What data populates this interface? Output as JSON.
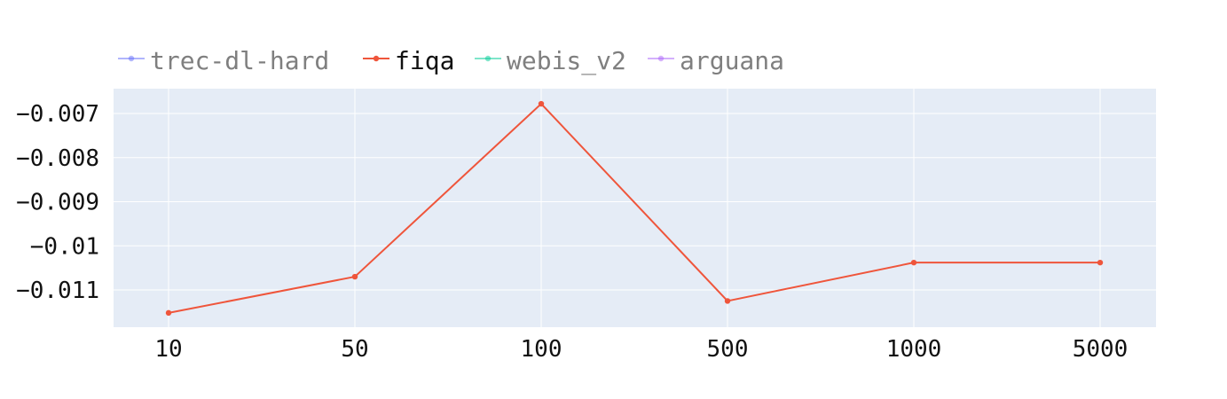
{
  "chart_data": {
    "type": "line",
    "title": "",
    "xlabel": "",
    "ylabel": "",
    "x_scale": "category",
    "categories": [
      "10",
      "50",
      "100",
      "500",
      "1000",
      "5000"
    ],
    "y_ticks": [
      -0.011,
      -0.01,
      -0.009,
      -0.008,
      -0.007
    ],
    "y_tick_labels": [
      "−0.011",
      "−0.01",
      "−0.009",
      "−0.008",
      "−0.007"
    ],
    "ylim": [
      -0.01152,
      -0.00658
    ],
    "grid": true,
    "legend": {
      "placement": "top-left",
      "orientation": "horizontal",
      "entries": [
        {
          "name": "trec-dl-hard",
          "color": "#636efa",
          "visible": false
        },
        {
          "name": "fiqa",
          "color": "#ef553b",
          "visible": true
        },
        {
          "name": "webis_v2",
          "color": "#00cc96",
          "visible": false
        },
        {
          "name": "arguana",
          "color": "#ab63fa",
          "visible": false
        }
      ]
    },
    "series": [
      {
        "name": "fiqa",
        "color": "#ef553b",
        "values": [
          -0.01152,
          -0.0107,
          -0.00678,
          -0.01125,
          -0.01038,
          -0.01038
        ]
      }
    ],
    "plot_background": "#e5ecf6",
    "grid_color": "#ffffff"
  }
}
